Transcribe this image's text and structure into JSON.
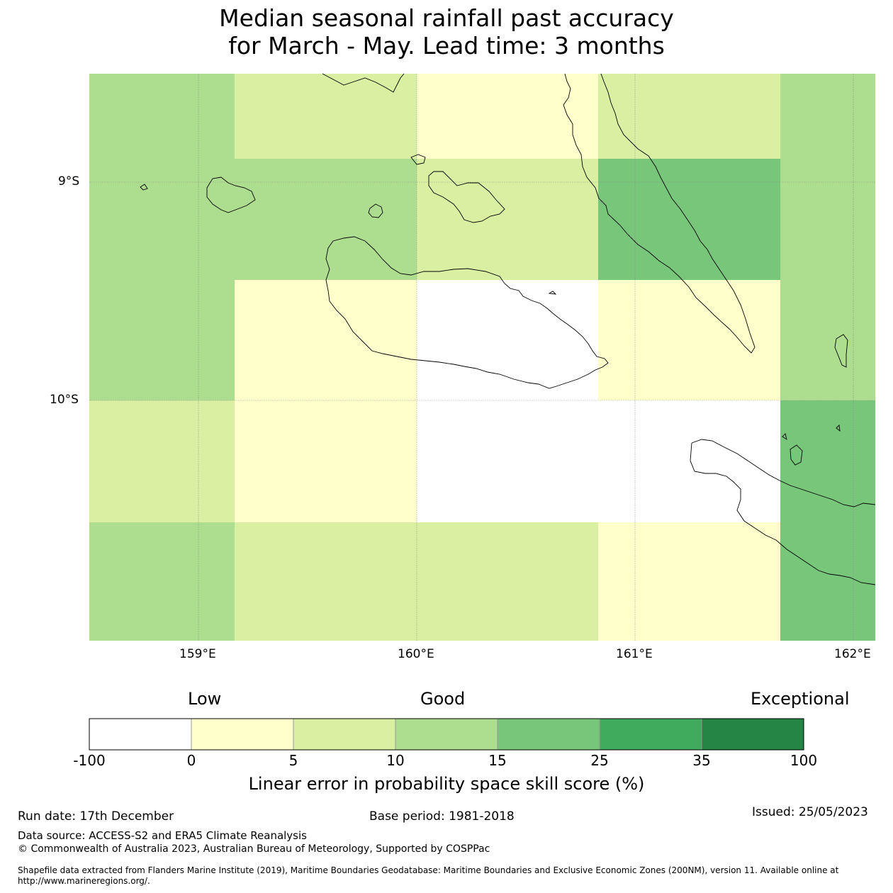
{
  "title": {
    "line1": "Median seasonal rainfall past accuracy",
    "line2": "for March - May. Lead time: 3 months"
  },
  "map": {
    "lat_labels": [
      "9°S",
      "10°S"
    ],
    "lon_labels": [
      "159°E",
      "160°E",
      "161°E",
      "162°E"
    ],
    "grid_cells": [
      {
        "row": 0,
        "cols": [
          "10-15",
          "5-10",
          "5-10",
          "0-5",
          "5-10",
          "10-15"
        ]
      },
      {
        "row": 1,
        "cols": [
          "10-15",
          "10-15",
          "5-10",
          "5-10",
          "15-25",
          "10-15"
        ]
      },
      {
        "row": 2,
        "cols": [
          "10-15",
          "0-5",
          "below 0",
          "0-5",
          "10-15"
        ]
      },
      {
        "row": 3,
        "cols": [
          "5-10",
          "0-5",
          "below 0",
          "below 0",
          "15-25"
        ]
      },
      {
        "row": 4,
        "cols": [
          "10-15",
          "5-10",
          "5-10",
          "0-5",
          "15-25"
        ]
      }
    ],
    "colors": {
      "below_0": "#ffffff",
      "0_5": "#ffffcc",
      "5_10": "#d9f0a3",
      "10_15": "#addd8e",
      "15_25": "#78c679",
      "25_35": "#41ab5d",
      "35_100": "#238443"
    }
  },
  "colorbar": {
    "category_labels": [
      "Low",
      "Good",
      "Exceptional"
    ],
    "ticks": [
      "-100",
      "0",
      "5",
      "10",
      "15",
      "25",
      "35",
      "100"
    ],
    "label": "Linear error in probability space skill score (%)"
  },
  "footer": {
    "run_date": "Run date: 17th December",
    "base_period": "Base period: 1981-2018",
    "issued": "Issued: 25/05/2023",
    "data_source": "Data source: ACCESS-S2 and ERA5 Climate Reanalysis",
    "copyright": "© Commonwealth of Australia 2023, Australian Bureau of Meteorology, Supported by COSPPac",
    "shapefile": "Shapefile data extracted from Flanders Marine Institute (2019), Maritime Boundaries Geodatabase: Maritime Boundaries and Exclusive Economic Zones (200NM), version 11. Available online at http://www.marineregions.org/."
  }
}
